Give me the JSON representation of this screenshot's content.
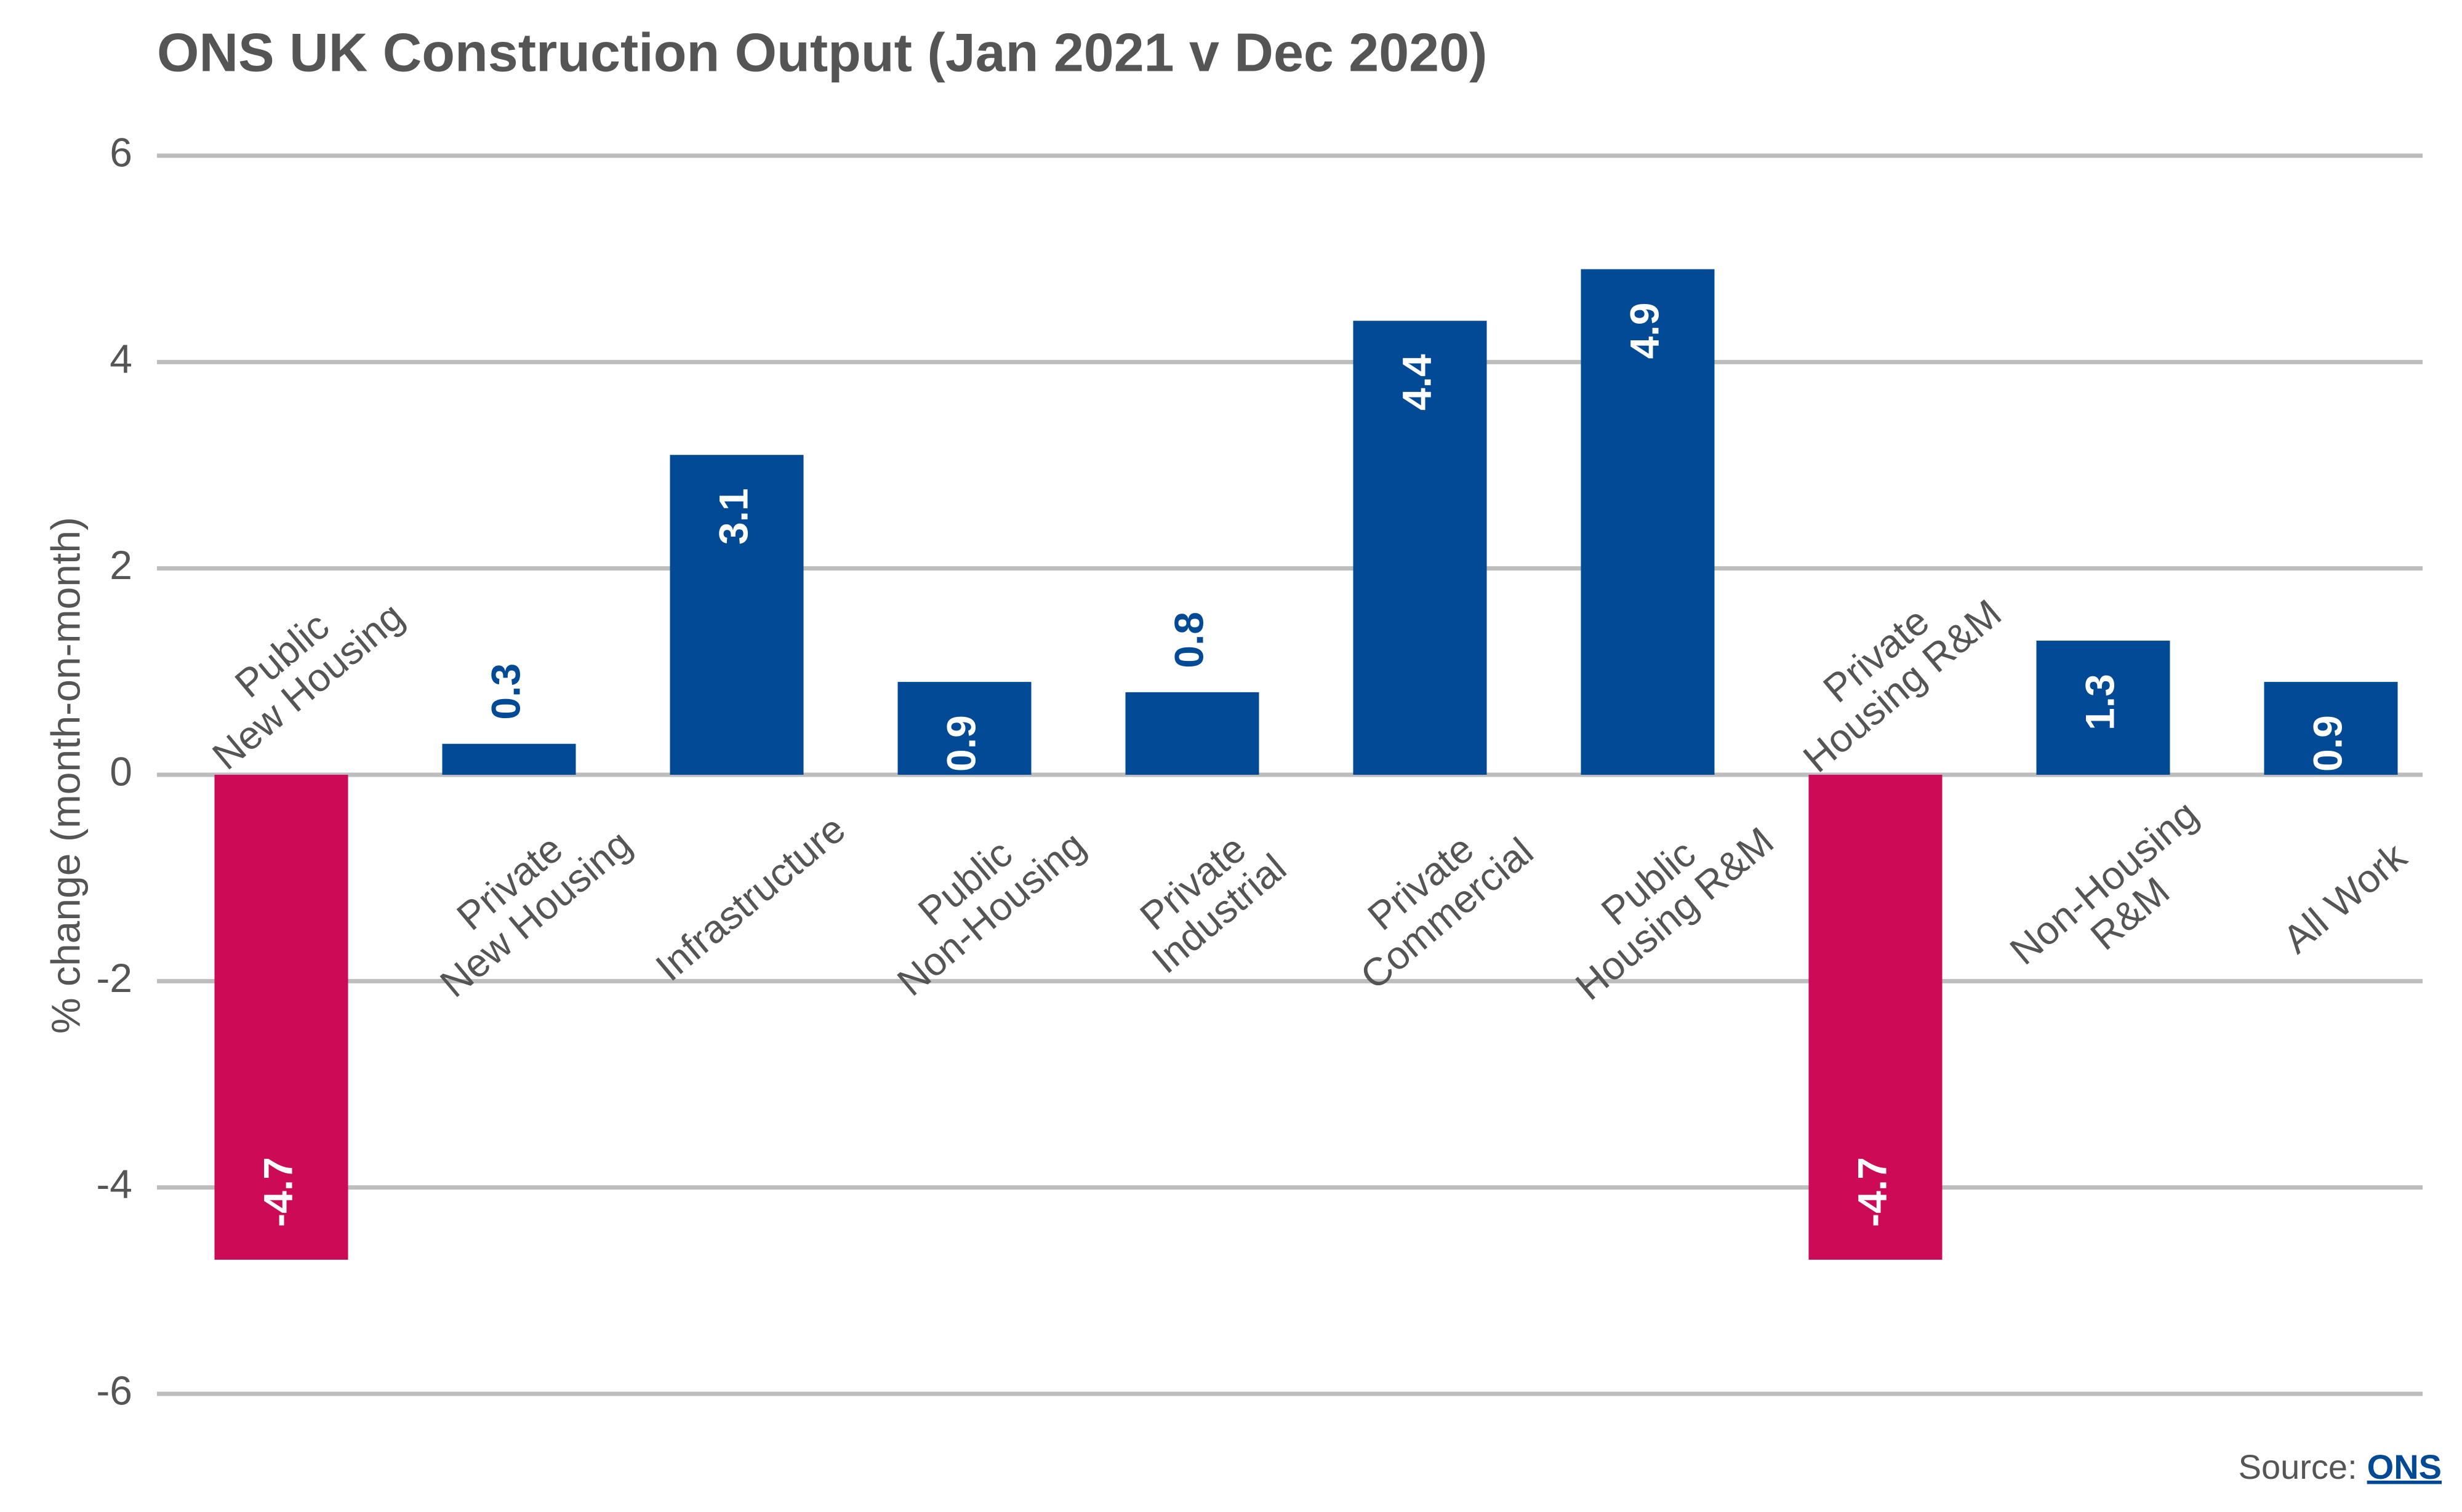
{
  "chart_data": {
    "type": "bar",
    "title": "ONS UK Construction Output (Jan 2021 v Dec 2020)",
    "ylabel": "% change (month-on-month)",
    "categories": [
      [
        "Public",
        "New Housing"
      ],
      [
        "Private",
        "New Housing"
      ],
      [
        "Infrastructure"
      ],
      [
        "Public",
        "Non-Housing"
      ],
      [
        "Private",
        "Industrial"
      ],
      [
        "Private",
        "Commercial"
      ],
      [
        "Public",
        "Housing R&M"
      ],
      [
        "Private",
        "Housing R&M"
      ],
      [
        "Non-Housing",
        "R&M"
      ],
      [
        "All Work"
      ]
    ],
    "values": [
      -4.7,
      0.3,
      3.1,
      0.9,
      0.8,
      4.4,
      4.9,
      -4.7,
      1.3,
      0.9
    ],
    "color": "#034a96",
    "negative_color": "#cc0a55",
    "ylim": [
      -6,
      6
    ],
    "yticks": [
      -6,
      -4,
      -2,
      0,
      2,
      4,
      6
    ],
    "grid": true,
    "source_label": "Source:",
    "source_link": "ONS"
  }
}
